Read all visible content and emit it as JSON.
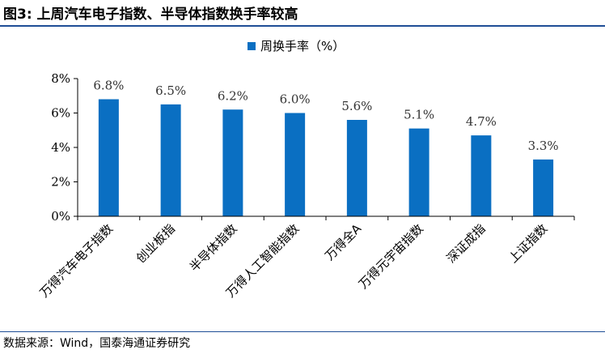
{
  "page": {
    "title": "图3:  上周汽车电子指数、半导体指数换手率较高",
    "source": "数据来源：Wind，国泰海通证券研究"
  },
  "chart_data": {
    "type": "bar",
    "title": "",
    "xlabel": "",
    "ylabel": "",
    "categories": [
      "万得汽车电子指数",
      "创业板指",
      "半导体指数",
      "万得人工智能指数",
      "万得全A",
      "万得元宇宙指数",
      "深证成指",
      "上证指数"
    ],
    "series": [
      {
        "name": "周换手率（%）",
        "values": [
          6.8,
          6.5,
          6.2,
          6.0,
          5.6,
          5.1,
          4.7,
          3.3
        ],
        "labels": [
          "6.8%",
          "6.5%",
          "6.2%",
          "6.0%",
          "5.6%",
          "5.1%",
          "4.7%",
          "3.3%"
        ]
      }
    ],
    "ylim": [
      0,
      8
    ],
    "yticks": [
      0,
      2,
      4,
      6,
      8
    ],
    "ytick_labels": [
      "0%",
      "2%",
      "4%",
      "6%",
      "8%"
    ],
    "grid": false,
    "legend": "top-center",
    "bar_color": "#0a6fc2"
  }
}
